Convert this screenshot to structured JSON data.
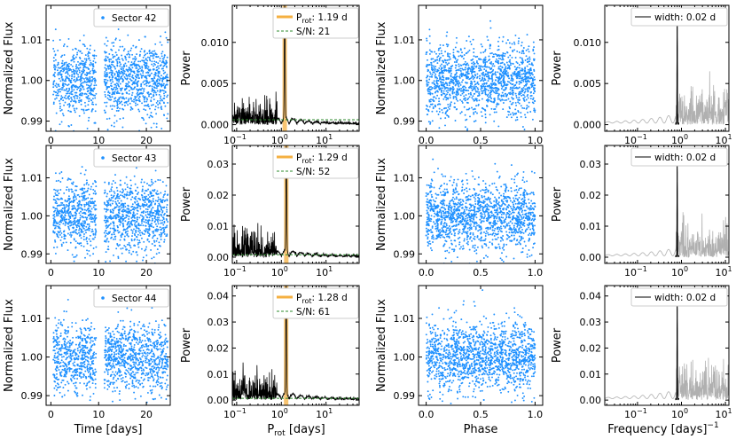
{
  "chart_data": {
    "type": "scatter",
    "labels": {
      "ylabel_flux": "Normalized Flux",
      "ylabel_power": "Power",
      "xlabel_time": "Time [days]",
      "xlabel_prot": "P",
      "xlabel_prot_sub": "rot",
      "xlabel_prot_unit": " [days]",
      "xlabel_phase": "Phase",
      "xlabel_freq": "Frequency [days]",
      "xlabel_freq_sup": "−1"
    },
    "colors": {
      "flux": "#1e90ff",
      "periodogram": "#000000",
      "prot": "#f5b041",
      "sn": "#2e8b2e",
      "window_gray": "#b0b0b0"
    },
    "ticks": {
      "flux": [
        "0.99",
        "1.00",
        "1.01"
      ],
      "time": [
        "0",
        "10",
        "20"
      ],
      "phase": [
        "0.0",
        "0.5",
        "1.0"
      ],
      "log_exponents": [
        "−1",
        "0",
        "1"
      ],
      "log_base": "10"
    },
    "time_range": [
      -1,
      25
    ],
    "gap": [
      9.5,
      11.2
    ],
    "rows": [
      {
        "sector_label": "Sector 42",
        "prot_label": ": 1.19 d",
        "prot_value": 1.19,
        "sn_label": "S/N: 21",
        "sn_level": 0.0006,
        "width_label": "width: 0.02 d",
        "flux_ylim": [
          0.9875,
          1.0185
        ],
        "power_ticks": [
          "0.000",
          "0.005",
          "0.010"
        ],
        "power_tick_values": [
          0,
          0.005,
          0.01
        ],
        "power_ylim": [
          -0.0008,
          0.0145
        ],
        "peak_power": 0.0139,
        "window_peak": 0.0128
      },
      {
        "sector_label": "Sector 43",
        "prot_label": ": 1.29 d",
        "prot_value": 1.29,
        "sn_label": "S/N: 52",
        "sn_level": 0.0008,
        "width_label": "width: 0.02 d",
        "flux_ylim": [
          0.9875,
          1.0185
        ],
        "power_ticks": [
          "0.00",
          "0.01",
          "0.02",
          "0.03"
        ],
        "power_tick_values": [
          0,
          0.01,
          0.02,
          0.03
        ],
        "power_ylim": [
          -0.002,
          0.036
        ],
        "peak_power": 0.0345,
        "window_peak": 0.0292
      },
      {
        "sector_label": "Sector 44",
        "prot_label": ": 1.28 d",
        "prot_value": 1.28,
        "sn_label": "S/N: 61",
        "sn_level": 0.0007,
        "width_label": "width: 0.02 d",
        "flux_ylim": [
          0.9875,
          1.0185
        ],
        "power_ticks": [
          "0.00",
          "0.01",
          "0.02",
          "0.03",
          "0.04"
        ],
        "power_tick_values": [
          0,
          0.01,
          0.02,
          0.03,
          0.04
        ],
        "power_ylim": [
          -0.002,
          0.044
        ],
        "peak_power": 0.0425,
        "window_peak": 0.0372
      }
    ]
  }
}
